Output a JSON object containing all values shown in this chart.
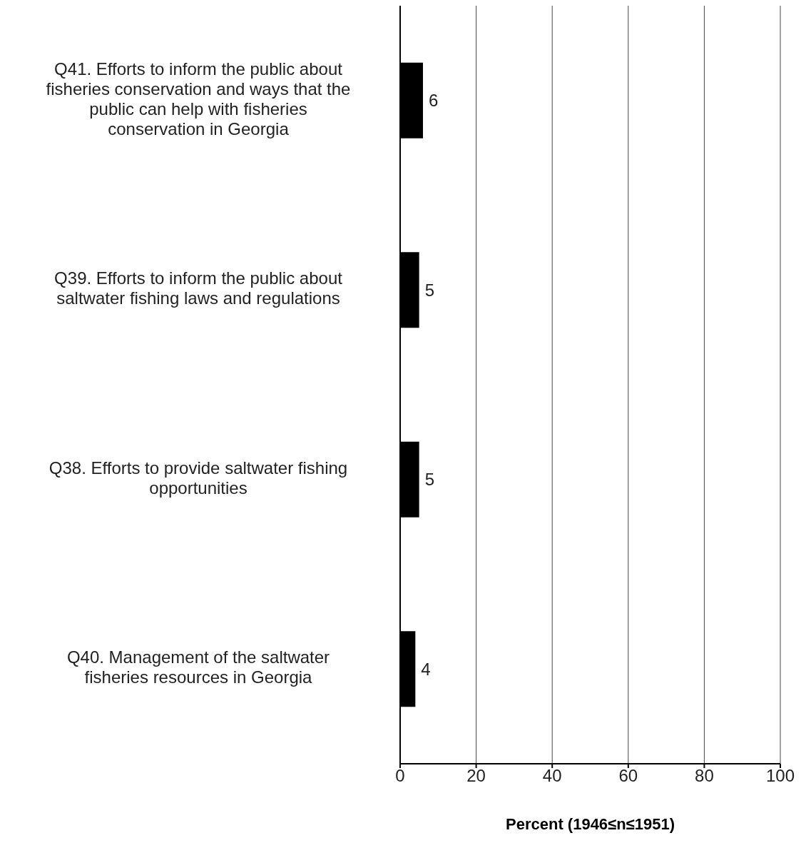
{
  "chart_data": {
    "type": "bar",
    "orientation": "horizontal",
    "categories": [
      "Q41. Efforts to inform the public about fisheries conservation and ways that the public can help with fisheries conservation in Georgia",
      "Q39. Efforts to inform the public about saltwater fishing laws and regulations",
      "Q38. Efforts to provide saltwater fishing opportunities",
      "Q40. Management of the saltwater fisheries resources in Georgia"
    ],
    "values": [
      6,
      5,
      5,
      4
    ],
    "color": "#000000",
    "xlabel": "Percent (1946≤n≤1951)",
    "xlim": [
      0,
      100
    ],
    "xticks": [
      0,
      20,
      40,
      60,
      80,
      100
    ],
    "grid": "x",
    "data_labels": true
  }
}
